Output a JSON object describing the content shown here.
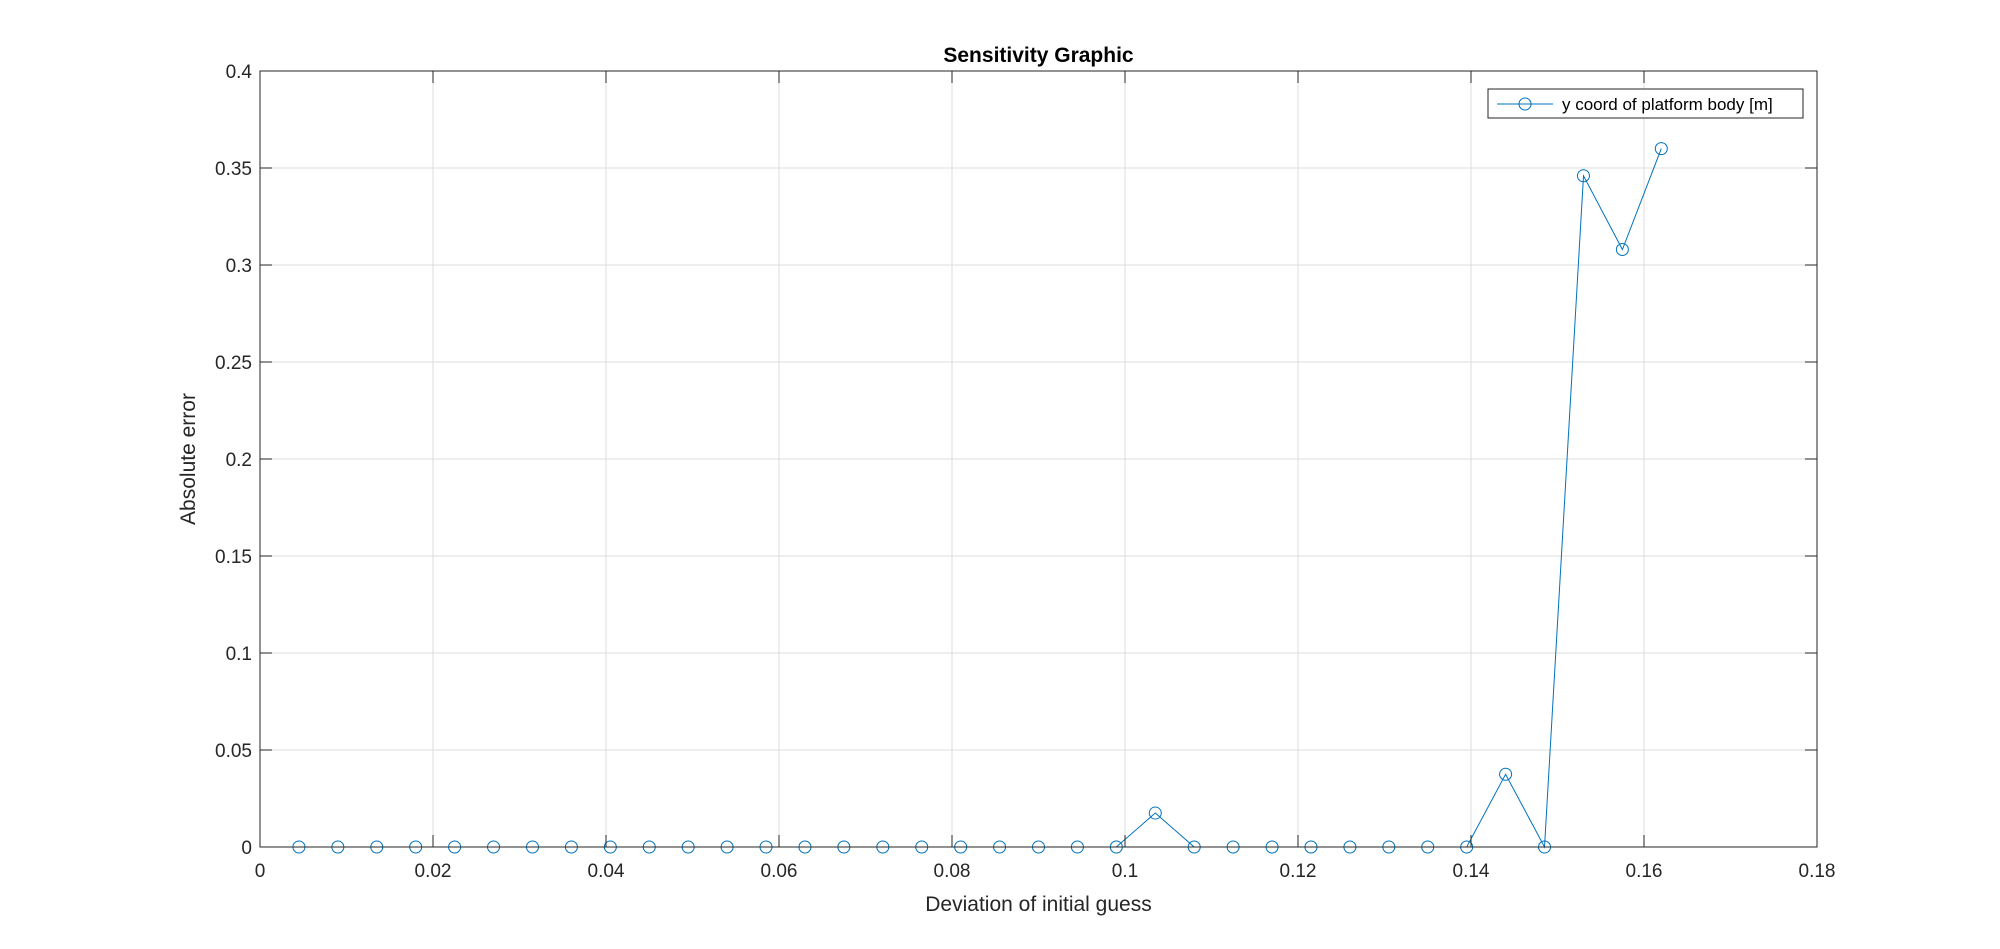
{
  "chart_data": {
    "type": "line",
    "title": "Sensitivity Graphic",
    "xlabel": "Deviation of initial guess",
    "ylabel": "Absolute error",
    "xlim": [
      0,
      0.18
    ],
    "ylim": [
      0,
      0.4
    ],
    "xticks": [
      0,
      0.02,
      0.04,
      0.06,
      0.08,
      0.1,
      0.12,
      0.14,
      0.16,
      0.18
    ],
    "xtick_labels": [
      "0",
      "0.02",
      "0.04",
      "0.06",
      "0.08",
      "0.1",
      "0.12",
      "0.14",
      "0.16",
      "0.18"
    ],
    "yticks": [
      0,
      0.05,
      0.1,
      0.15,
      0.2,
      0.25,
      0.3,
      0.35,
      0.4
    ],
    "ytick_labels": [
      "0",
      "0.05",
      "0.1",
      "0.15",
      "0.2",
      "0.25",
      "0.3",
      "0.35",
      "0.4"
    ],
    "grid": true,
    "legend_position": "top-right",
    "series": [
      {
        "name": "y coord of platform body [m]",
        "color": "#0072BD",
        "marker": "circle",
        "x": [
          0.0045,
          0.009,
          0.0135,
          0.018,
          0.0225,
          0.027,
          0.0315,
          0.036,
          0.0405,
          0.045,
          0.0495,
          0.054,
          0.0585,
          0.063,
          0.0675,
          0.072,
          0.0765,
          0.081,
          0.0855,
          0.09,
          0.0945,
          0.099,
          0.1035,
          0.108,
          0.1125,
          0.117,
          0.1215,
          0.126,
          0.1305,
          0.135,
          0.1395,
          0.144,
          0.1485,
          0.153,
          0.1575,
          0.162
        ],
        "y": [
          0,
          0,
          0,
          0,
          0,
          0,
          0,
          0,
          0,
          0,
          0,
          0,
          0,
          0,
          0,
          0,
          0,
          0,
          0,
          0,
          0,
          0,
          0.0175,
          0,
          0,
          0,
          0,
          0,
          0,
          0,
          0,
          0.0375,
          0,
          0.346,
          0.308,
          0.36
        ]
      }
    ]
  }
}
